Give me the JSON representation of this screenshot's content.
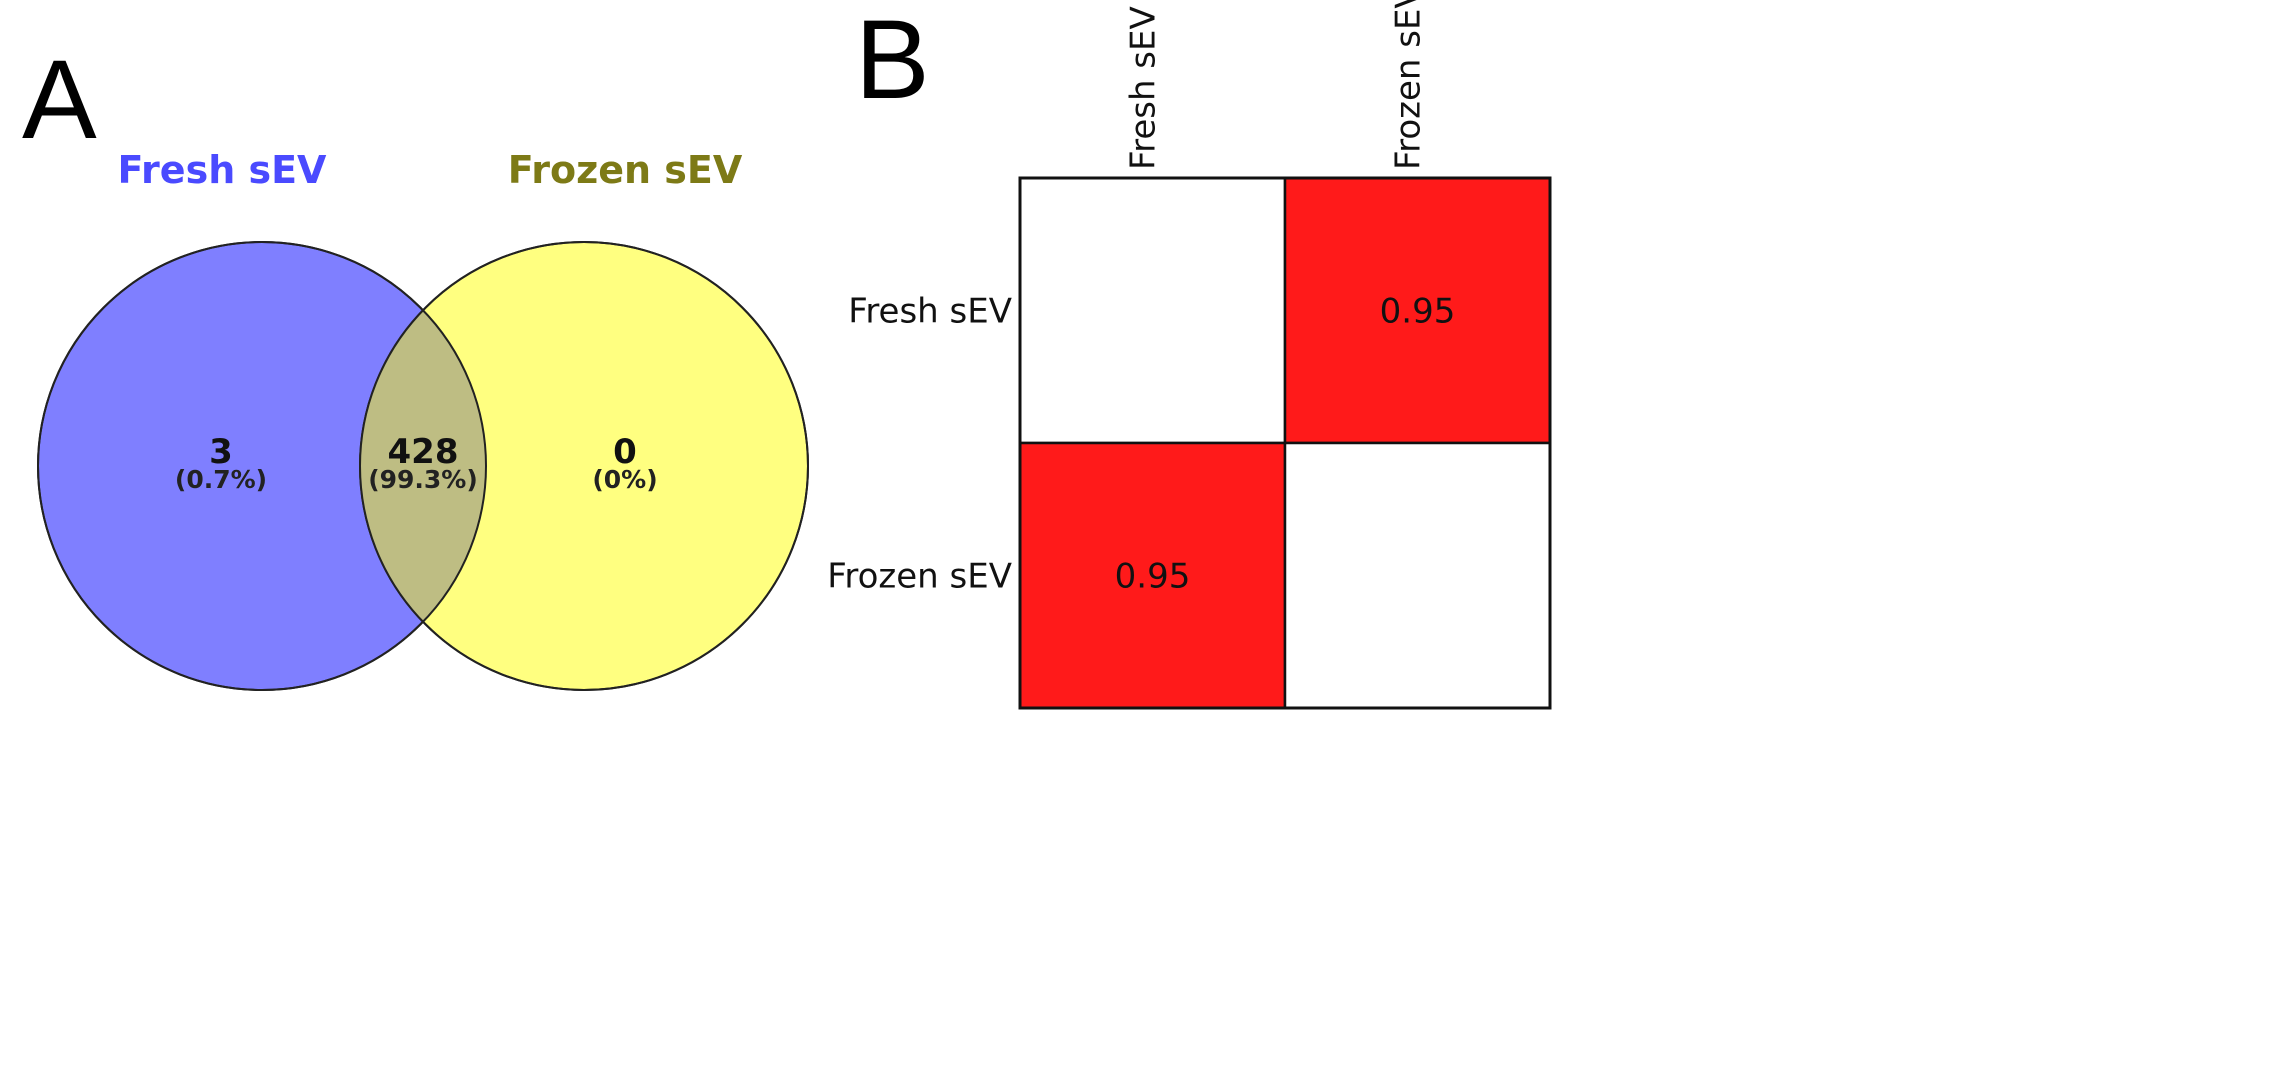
{
  "panels": {
    "a_label": "A",
    "b_label": "B"
  },
  "chart_data": [
    {
      "type": "venn",
      "sets": [
        {
          "name": "Fresh sEV",
          "color": "#7f7fff",
          "title_color": "#4a4aff"
        },
        {
          "name": "Frozen sEV",
          "color": "#ffff80",
          "title_color": "#7d7a16"
        }
      ],
      "overlap_color": "#bebd83",
      "regions": [
        {
          "id": "fresh_only",
          "count": "3",
          "percent": "(0.7%)"
        },
        {
          "id": "both",
          "count": "428",
          "percent": "(99.3%)"
        },
        {
          "id": "frozen_only",
          "count": "0",
          "percent": "(0%)"
        }
      ]
    },
    {
      "type": "heatmap",
      "rows": [
        "Fresh sEV",
        "Frozen sEV"
      ],
      "columns": [
        "Fresh sEV",
        "Frozen sEV"
      ],
      "values": [
        [
          null,
          0.95
        ],
        [
          0.95,
          null
        ]
      ],
      "value_labels": [
        [
          "",
          "0.95"
        ],
        [
          "0.95",
          ""
        ]
      ],
      "cell_color": "#ff1a1a",
      "empty_color": "#ffffff"
    }
  ]
}
